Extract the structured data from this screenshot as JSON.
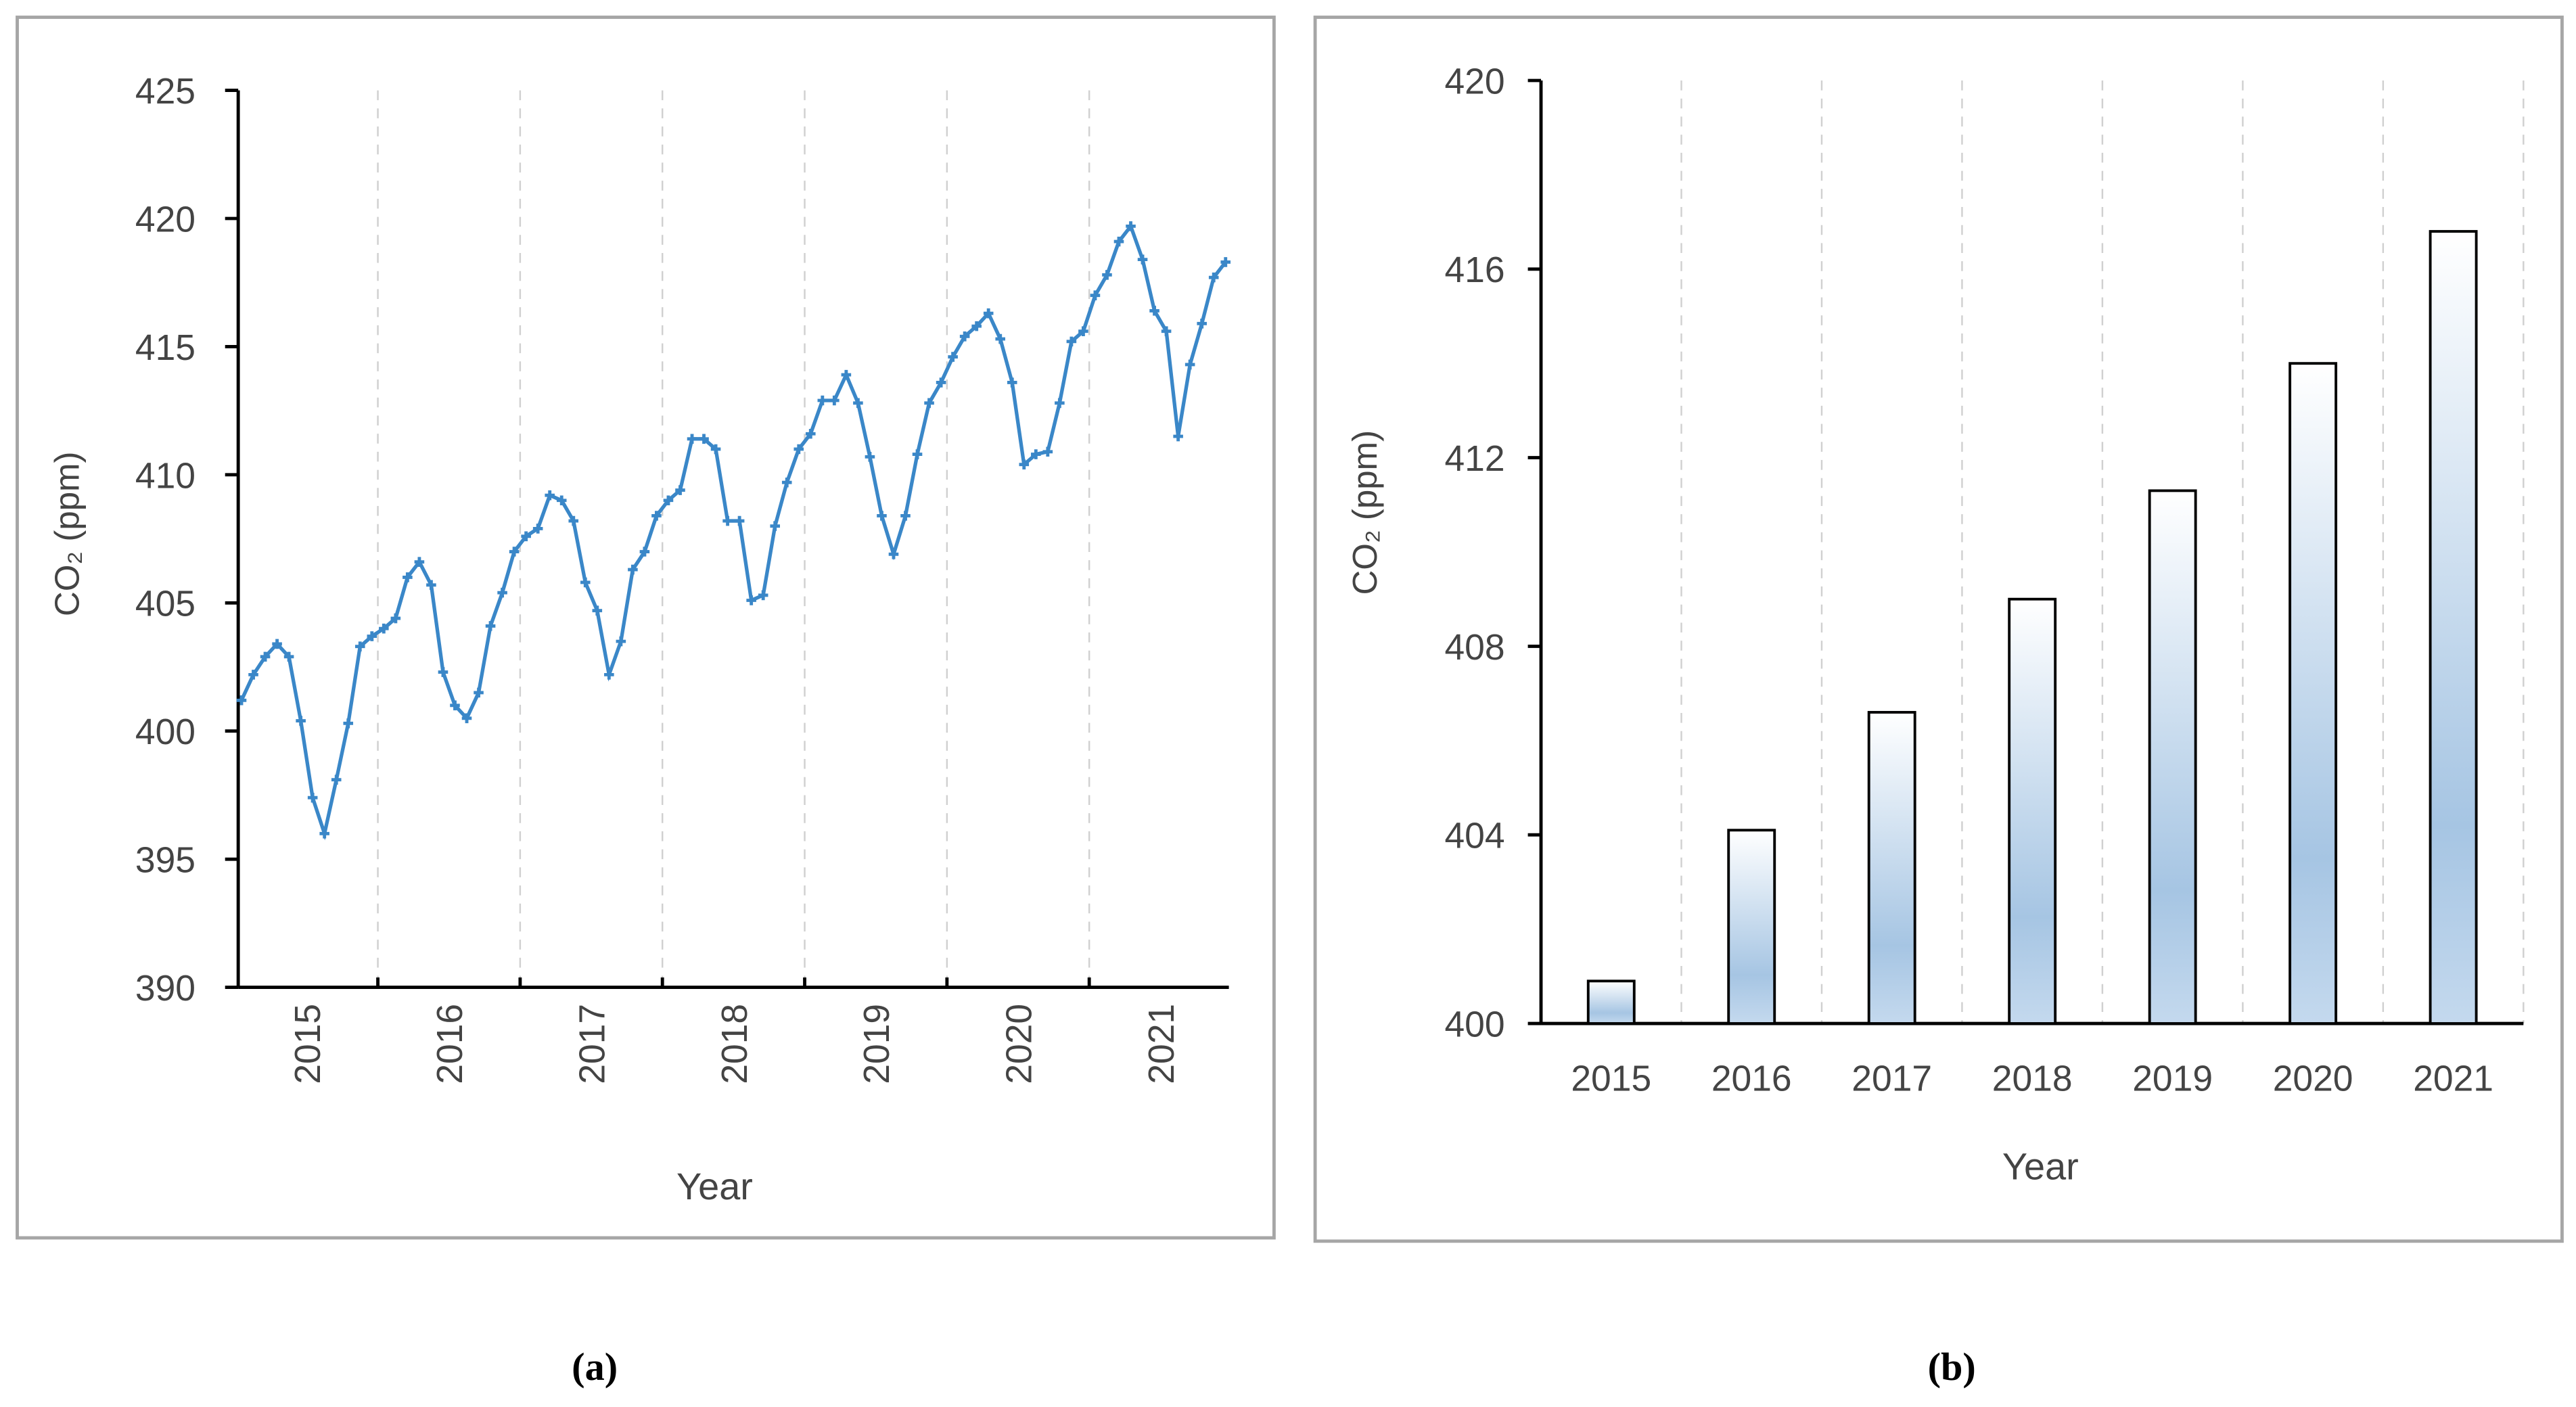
{
  "chart_data": [
    {
      "type": "line",
      "panel_label": "(a)",
      "xlabel": "Year",
      "ylabel": "CO₂ (ppm)",
      "ylim": [
        390,
        425
      ],
      "yticks": [
        390,
        395,
        400,
        405,
        410,
        415,
        420,
        425
      ],
      "x_tick_labels": [
        "2015",
        "2016",
        "2017",
        "2018",
        "2019",
        "2020",
        "2021"
      ],
      "grid": "vertical dashed at year boundaries",
      "color": "#3a87c8",
      "marker": "plus",
      "x_unit": "monthly, Jan 2015 – Dec 2021",
      "values": [
        401.2,
        402.2,
        402.9,
        403.4,
        402.9,
        400.4,
        397.4,
        396.0,
        398.1,
        400.3,
        403.3,
        403.7,
        404.0,
        404.4,
        406.0,
        406.6,
        405.7,
        402.3,
        401.0,
        400.5,
        401.5,
        404.1,
        405.4,
        407.0,
        407.6,
        407.9,
        409.2,
        409.0,
        408.2,
        405.8,
        404.7,
        402.2,
        403.5,
        406.3,
        407.0,
        408.4,
        409.0,
        409.4,
        411.4,
        411.4,
        411.0,
        408.2,
        408.2,
        405.1,
        405.3,
        408.0,
        409.7,
        411.0,
        411.6,
        412.9,
        412.9,
        413.9,
        412.8,
        410.7,
        408.4,
        406.9,
        408.4,
        410.8,
        412.8,
        413.6,
        414.6,
        415.4,
        415.8,
        416.3,
        415.3,
        413.6,
        410.4,
        410.8,
        410.9,
        412.8,
        415.2,
        415.6,
        417.0,
        417.8,
        419.1,
        419.7,
        418.4,
        416.4,
        415.6,
        411.5,
        414.3,
        415.9,
        417.7,
        418.3
      ]
    },
    {
      "type": "bar",
      "panel_label": "(b)",
      "xlabel": "Year",
      "ylabel": "CO₂ (ppm)",
      "ylim": [
        400,
        420
      ],
      "yticks": [
        400,
        404,
        408,
        412,
        416,
        420
      ],
      "categories": [
        "2015",
        "2016",
        "2017",
        "2018",
        "2019",
        "2020",
        "2021"
      ],
      "values": [
        400.9,
        404.1,
        406.6,
        409.0,
        411.3,
        414.0,
        416.8
      ],
      "grid": "vertical dashed between categories",
      "fill_gradient": [
        "#ffffff",
        "#a6c5e3"
      ]
    }
  ]
}
